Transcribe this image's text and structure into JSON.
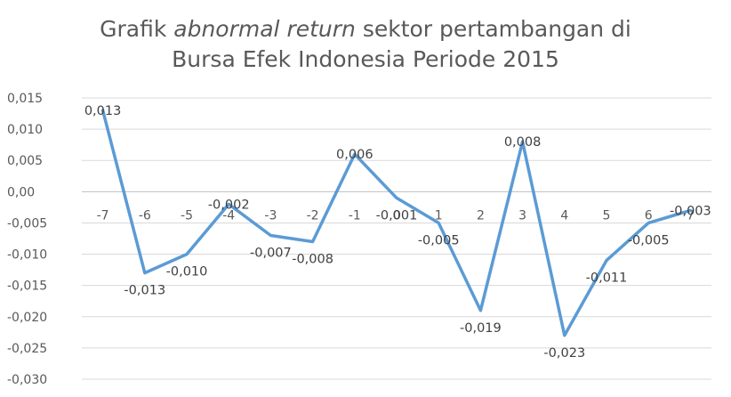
{
  "chart_data": {
    "type": "line",
    "title_parts": [
      "Grafik ",
      "abnormal return",
      " sektor pertambangan di",
      "Bursa Efek Indonesia Periode 2015"
    ],
    "x": [
      "-7",
      "-6",
      "-5",
      "-4",
      "-3",
      "-2",
      "-1",
      "0",
      "1",
      "2",
      "3",
      "4",
      "5",
      "6",
      "7"
    ],
    "values": [
      0.013,
      -0.013,
      -0.01,
      -0.002,
      -0.007,
      -0.008,
      0.006,
      -0.001,
      -0.005,
      -0.019,
      0.008,
      -0.023,
      -0.011,
      -0.005,
      -0.003
    ],
    "labels": [
      "0,013",
      "-0,013",
      "-0,010",
      "-0,002",
      "-0,007",
      "-0,008",
      "0,006",
      "-0,001",
      "-0,005",
      "-0,019",
      "0,008",
      "-0,023",
      "-0,011",
      "-0,005",
      "-0,003"
    ],
    "ylim": [
      -0.03,
      0.015
    ],
    "yticks": [
      0.015,
      0.01,
      0.005,
      0.0,
      -0.005,
      -0.01,
      -0.015,
      -0.02,
      -0.025,
      -0.03
    ],
    "ytick_labels": [
      "0,015",
      "0,010",
      "0,005",
      "0,00",
      "-0,005",
      "-0,010",
      "-0,015",
      "-0,020",
      "-0,025",
      "-0,030"
    ],
    "grid": true,
    "series_color": "#5b9bd5",
    "xlabel": "",
    "ylabel": ""
  }
}
